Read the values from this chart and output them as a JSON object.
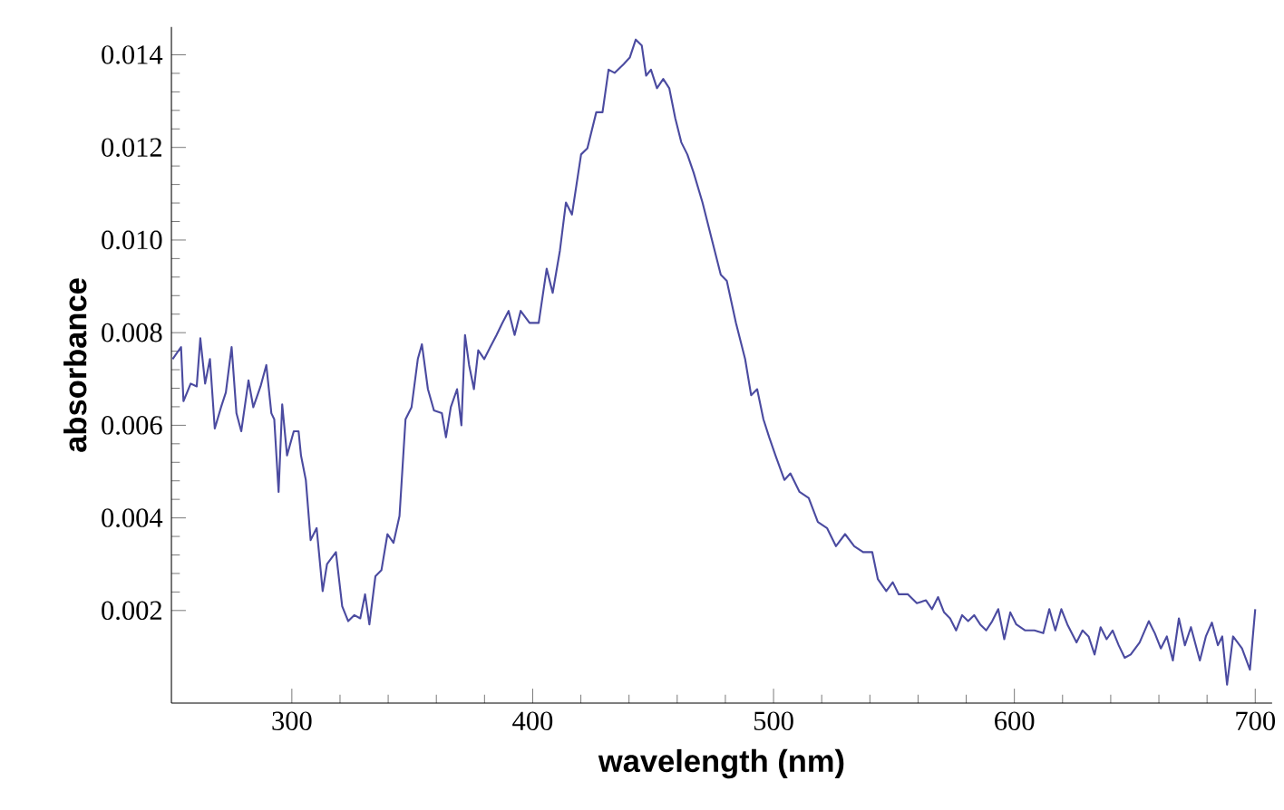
{
  "chart_data": {
    "type": "line",
    "xlabel": "wavelength (nm)",
    "ylabel": "absorbance",
    "xlim": [
      250,
      707
    ],
    "ylim": [
      0,
      0.0146
    ],
    "xticks": [
      300,
      400,
      500,
      600,
      700
    ],
    "yticks": [
      0.002,
      0.004,
      0.006,
      0.008,
      {
        "value": 0.01,
        "label": "0.010"
      },
      0.012,
      0.014
    ],
    "marker": "none",
    "line_style": "solid",
    "series": [
      {
        "color": "#4b4ba0",
        "x": [
          250.5,
          254,
          255,
          258,
          260.5,
          262,
          264,
          266,
          268,
          270.6,
          272.6,
          275,
          277,
          279,
          282,
          284,
          287,
          289.4,
          291.5,
          292.7,
          294.5,
          296,
          298,
          300.8,
          302.8,
          303.8,
          305.8,
          307.8,
          310.3,
          312.8,
          314.6,
          318.3,
          320.9,
          323.4,
          325.9,
          328.4,
          330.4,
          332.2,
          334.7,
          337.2,
          339.7,
          342.2,
          344.7,
          347.2,
          349.7,
          352.3,
          354,
          356.5,
          359,
          362.3,
          364,
          366,
          368.6,
          370.4,
          371.9,
          373.6,
          375.6,
          377.4,
          379.9,
          382.4,
          385,
          387.4,
          390,
          392.5,
          395,
          398.7,
          402.5,
          405.8,
          408.3,
          411.3,
          413.8,
          416.3,
          420.1,
          422.7,
          426.4,
          429,
          431.5,
          434,
          437.8,
          440.3,
          442.8,
          445.3,
          447.1,
          449.1,
          451.6,
          454.2,
          456.7,
          459.2,
          461.7,
          464.2,
          466.8,
          470.5,
          474.3,
          478.1,
          480.6,
          484.4,
          488.2,
          490.7,
          493.2,
          495.8,
          498.2,
          500.8,
          504.5,
          507,
          510.8,
          514.6,
          518.4,
          522.2,
          525.9,
          529.7,
          533.5,
          537.2,
          541,
          543.3,
          546.8,
          549.5,
          552,
          555.8,
          559.5,
          563.3,
          565.8,
          568.3,
          570.8,
          573.3,
          575.8,
          578.3,
          580.8,
          583.3,
          585.8,
          588.3,
          590.8,
          593.3,
          595.8,
          598.3,
          600.8,
          604.5,
          608.3,
          612,
          614.5,
          617,
          619.5,
          622,
          625.8,
          628.3,
          630.8,
          633.3,
          635.8,
          638.3,
          640.8,
          643.3,
          645.8,
          648.3,
          652,
          655.8,
          658.3,
          660.8,
          663.3,
          665.8,
          668.3,
          670.8,
          673.3,
          677,
          679.5,
          682,
          684.5,
          686.3,
          688.3,
          690.8,
          694.5,
          697.8,
          700
        ],
        "values": [
          0.00743,
          0.00769,
          0.00652,
          0.0069,
          0.00684,
          0.00788,
          0.0069,
          0.00743,
          0.00593,
          0.00639,
          0.00671,
          0.00769,
          0.00626,
          0.00587,
          0.00697,
          0.00639,
          0.00684,
          0.0073,
          0.00626,
          0.00613,
          0.00456,
          0.00645,
          0.00535,
          0.00587,
          0.00587,
          0.00535,
          0.00482,
          0.00352,
          0.00378,
          0.00242,
          0.003,
          0.00326,
          0.00209,
          0.00177,
          0.0019,
          0.00183,
          0.00235,
          0.0017,
          0.00274,
          0.00287,
          0.00365,
          0.00346,
          0.00404,
          0.00613,
          0.00639,
          0.00743,
          0.00775,
          0.00678,
          0.00632,
          0.00626,
          0.00574,
          0.00639,
          0.00678,
          0.006,
          0.00795,
          0.0073,
          0.00678,
          0.00762,
          0.00743,
          0.00769,
          0.00795,
          0.00821,
          0.00847,
          0.00795,
          0.00847,
          0.00821,
          0.00821,
          0.00938,
          0.00886,
          0.00977,
          0.01081,
          0.01055,
          0.01185,
          0.01198,
          0.01276,
          0.01276,
          0.01368,
          0.01361,
          0.0138,
          0.01394,
          0.01433,
          0.0142,
          0.01355,
          0.01368,
          0.01328,
          0.01348,
          0.01328,
          0.01263,
          0.01211,
          0.01185,
          0.01146,
          0.01081,
          0.01003,
          0.00925,
          0.00912,
          0.00821,
          0.00743,
          0.00665,
          0.00678,
          0.00613,
          0.00574,
          0.00535,
          0.00482,
          0.00496,
          0.00456,
          0.00443,
          0.00391,
          0.00378,
          0.00339,
          0.00365,
          0.00339,
          0.00326,
          0.00326,
          0.00268,
          0.00242,
          0.00261,
          0.00235,
          0.00235,
          0.00216,
          0.00222,
          0.00203,
          0.00229,
          0.00196,
          0.00183,
          0.00157,
          0.0019,
          0.00177,
          0.0019,
          0.0017,
          0.00157,
          0.00177,
          0.00203,
          0.00138,
          0.00196,
          0.0017,
          0.00157,
          0.00157,
          0.00151,
          0.00203,
          0.00157,
          0.00203,
          0.0017,
          0.00131,
          0.00157,
          0.00144,
          0.00105,
          0.00164,
          0.00138,
          0.00157,
          0.00125,
          0.00098,
          0.00105,
          0.00131,
          0.00177,
          0.00151,
          0.00118,
          0.00144,
          0.00092,
          0.00183,
          0.00125,
          0.00164,
          0.00092,
          0.00144,
          0.00174,
          0.00125,
          0.00144,
          0.0004,
          0.00144,
          0.00118,
          0.00072,
          0.00203
        ]
      }
    ]
  }
}
